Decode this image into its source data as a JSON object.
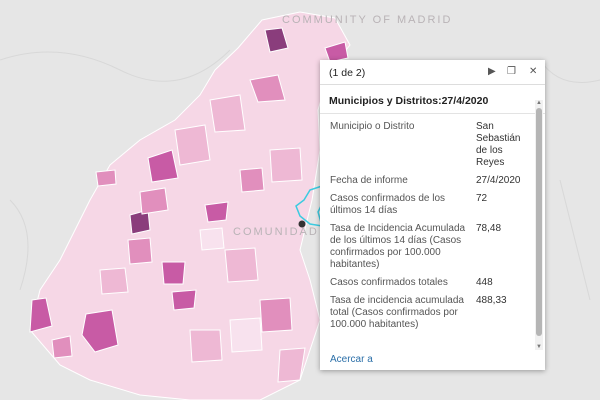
{
  "map": {
    "labels": {
      "community_top": "COMMUNITY OF MADRID",
      "comunidad_center": "COMUNIDAD DE MADRID"
    },
    "colors": {
      "background": "#e6e6e6",
      "region_fill": "#f6d7e6",
      "shade_1": "#f8e2ee",
      "shade_2": "#eeb8d4",
      "shade_3": "#e18fbd",
      "shade_4": "#c85ba5",
      "shade_5": "#8a3d7c",
      "highlight_outline": "#3ccbe0"
    }
  },
  "popup": {
    "pager": "(1 de 2)",
    "icons": {
      "next": "play-icon",
      "maximize": "maximize-icon",
      "close": "close-icon"
    },
    "title": "Municipios y Distritos:27/4/2020",
    "fields": [
      {
        "key": "Municipio o Distrito",
        "value": "San Sebastián de los Reyes"
      },
      {
        "key": "Fecha de informe",
        "value": "27/4/2020"
      },
      {
        "key": "Casos confirmados de los últimos 14 días",
        "value": "72"
      },
      {
        "key": "Tasa de Incidencia Acumulada de los últimos 14 días (Casos confirmados por 100.000 habitantes)",
        "value": "78,48"
      },
      {
        "key": "Casos confirmados totales",
        "value": "448"
      },
      {
        "key": "Tasa de incidencia acumulada total (Casos confirmados por 100.000 habitantes)",
        "value": "488,33"
      }
    ],
    "zoom_link": "Acercar a"
  }
}
